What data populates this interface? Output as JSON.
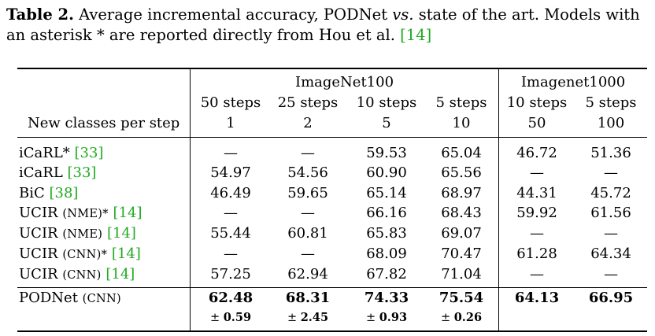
{
  "caption": {
    "label": "Table 2.",
    "text_1": " Average incremental accuracy, PODNet ",
    "vs": "vs.",
    "text_2": " state of the art. Models with an asterisk * are reported directly from Hou et al. ",
    "ref": "[14]"
  },
  "header": {
    "group_imagenet100": "ImageNet100",
    "group_imagenet1000": "Imagenet1000",
    "row_label": "New classes per step",
    "columns": [
      {
        "steps": "50 steps",
        "classes": "1"
      },
      {
        "steps": "25 steps",
        "classes": "2"
      },
      {
        "steps": "10 steps",
        "classes": "5"
      },
      {
        "steps": "5 steps",
        "classes": "10"
      },
      {
        "steps": "10 steps",
        "classes": "50"
      },
      {
        "steps": "5 steps",
        "classes": "100"
      }
    ]
  },
  "rows": [
    {
      "name": "iCaRL*",
      "tag": "",
      "ref": "[33]",
      "values": [
        "—",
        "—",
        "59.53",
        "65.04",
        "46.72",
        "51.36"
      ]
    },
    {
      "name": "iCaRL",
      "tag": "",
      "ref": "[33]",
      "values": [
        "54.97",
        "54.56",
        "60.90",
        "65.56",
        "—",
        "—"
      ]
    },
    {
      "name": "BiC",
      "tag": "",
      "ref": "[38]",
      "values": [
        "46.49",
        "59.65",
        "65.14",
        "68.97",
        "44.31",
        "45.72"
      ]
    },
    {
      "name": "UCIR ",
      "tag": "(NME)*",
      "ref": "[14]",
      "values": [
        "—",
        "—",
        "66.16",
        "68.43",
        "59.92",
        "61.56"
      ]
    },
    {
      "name": "UCIR ",
      "tag": "(NME)",
      "ref": "[14]",
      "values": [
        "55.44",
        "60.81",
        "65.83",
        "69.07",
        "—",
        "—"
      ]
    },
    {
      "name": "UCIR ",
      "tag": "(CNN)*",
      "ref": "[14]",
      "values": [
        "—",
        "—",
        "68.09",
        "70.47",
        "61.28",
        "64.34"
      ]
    },
    {
      "name": "UCIR ",
      "tag": "(CNN)",
      "ref": "[14]",
      "values": [
        "57.25",
        "62.94",
        "67.82",
        "71.04",
        "—",
        "—"
      ]
    }
  ],
  "podnet": {
    "name": "PODNet ",
    "tag": "(CNN)",
    "values": [
      "62.48",
      "68.31",
      "74.33",
      "75.54",
      "64.13",
      "66.95"
    ],
    "pm_sign": "±",
    "stds": [
      "0.59",
      "2.45",
      "0.93",
      "0.26"
    ]
  }
}
